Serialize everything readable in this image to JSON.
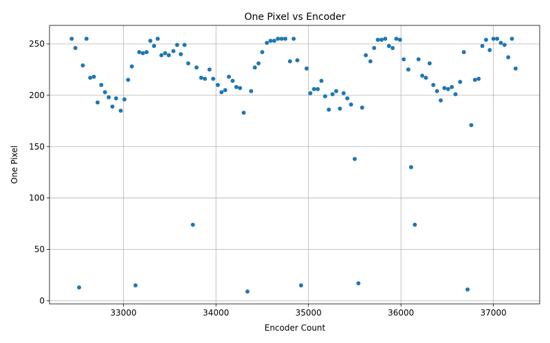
{
  "chart_data": {
    "type": "scatter",
    "title": "One Pixel vs Encoder",
    "xlabel": "Encoder Count",
    "ylabel": "One Pixel",
    "xlim": [
      32200,
      37500
    ],
    "ylim": [
      -3,
      268
    ],
    "xticks": [
      33000,
      34000,
      35000,
      36000,
      37000
    ],
    "yticks": [
      0,
      50,
      100,
      150,
      200,
      250
    ],
    "grid": true,
    "point_color": "#1f77b4",
    "points": [
      [
        32440,
        255
      ],
      [
        32480,
        246
      ],
      [
        32520,
        13
      ],
      [
        32560,
        229
      ],
      [
        32600,
        255
      ],
      [
        32640,
        217
      ],
      [
        32680,
        218
      ],
      [
        32720,
        193
      ],
      [
        32760,
        210
      ],
      [
        32800,
        203
      ],
      [
        32840,
        198
      ],
      [
        32880,
        189
      ],
      [
        32920,
        197
      ],
      [
        32970,
        185
      ],
      [
        33010,
        196
      ],
      [
        33050,
        215
      ],
      [
        33090,
        228
      ],
      [
        33130,
        15
      ],
      [
        33170,
        242
      ],
      [
        33210,
        241
      ],
      [
        33250,
        242
      ],
      [
        33290,
        253
      ],
      [
        33330,
        248
      ],
      [
        33370,
        255
      ],
      [
        33410,
        239
      ],
      [
        33450,
        241
      ],
      [
        33490,
        239
      ],
      [
        33540,
        243
      ],
      [
        33580,
        249
      ],
      [
        33620,
        240
      ],
      [
        33660,
        249
      ],
      [
        33700,
        231
      ],
      [
        33750,
        74
      ],
      [
        33790,
        227
      ],
      [
        33840,
        217
      ],
      [
        33880,
        216
      ],
      [
        33930,
        225
      ],
      [
        33970,
        216
      ],
      [
        34020,
        210
      ],
      [
        34060,
        203
      ],
      [
        34100,
        205
      ],
      [
        34140,
        218
      ],
      [
        34180,
        214
      ],
      [
        34220,
        208
      ],
      [
        34260,
        207
      ],
      [
        34300,
        183
      ],
      [
        34340,
        9
      ],
      [
        34380,
        204
      ],
      [
        34420,
        227
      ],
      [
        34460,
        231
      ],
      [
        34500,
        242
      ],
      [
        34550,
        251
      ],
      [
        34590,
        253
      ],
      [
        34630,
        253
      ],
      [
        34670,
        255
      ],
      [
        34710,
        255
      ],
      [
        34750,
        255
      ],
      [
        34800,
        233
      ],
      [
        34840,
        255
      ],
      [
        34880,
        234
      ],
      [
        34920,
        15
      ],
      [
        34980,
        226
      ],
      [
        35020,
        202
      ],
      [
        35060,
        206
      ],
      [
        35100,
        206
      ],
      [
        35140,
        214
      ],
      [
        35180,
        199
      ],
      [
        35220,
        186
      ],
      [
        35260,
        201
      ],
      [
        35300,
        204
      ],
      [
        35340,
        187
      ],
      [
        35380,
        202
      ],
      [
        35420,
        197
      ],
      [
        35460,
        191
      ],
      [
        35500,
        138
      ],
      [
        35540,
        17
      ],
      [
        35580,
        188
      ],
      [
        35620,
        239
      ],
      [
        35670,
        233
      ],
      [
        35710,
        246
      ],
      [
        35750,
        254
      ],
      [
        35790,
        254
      ],
      [
        35830,
        255
      ],
      [
        35870,
        248
      ],
      [
        35910,
        246
      ],
      [
        35950,
        255
      ],
      [
        35990,
        254
      ],
      [
        36030,
        235
      ],
      [
        36080,
        225
      ],
      [
        36110,
        130
      ],
      [
        36150,
        74
      ],
      [
        36190,
        235
      ],
      [
        36230,
        219
      ],
      [
        36270,
        217
      ],
      [
        36310,
        231
      ],
      [
        36350,
        210
      ],
      [
        36390,
        204
      ],
      [
        36430,
        195
      ],
      [
        36470,
        207
      ],
      [
        36510,
        206
      ],
      [
        36550,
        208
      ],
      [
        36590,
        201
      ],
      [
        36640,
        213
      ],
      [
        36680,
        242
      ],
      [
        36720,
        11
      ],
      [
        36760,
        171
      ],
      [
        36800,
        215
      ],
      [
        36840,
        216
      ],
      [
        36880,
        248
      ],
      [
        36920,
        254
      ],
      [
        36960,
        244
      ],
      [
        37000,
        255
      ],
      [
        37040,
        255
      ],
      [
        37080,
        251
      ],
      [
        37120,
        249
      ],
      [
        37160,
        237
      ],
      [
        37200,
        255
      ],
      [
        37240,
        226
      ]
    ]
  }
}
